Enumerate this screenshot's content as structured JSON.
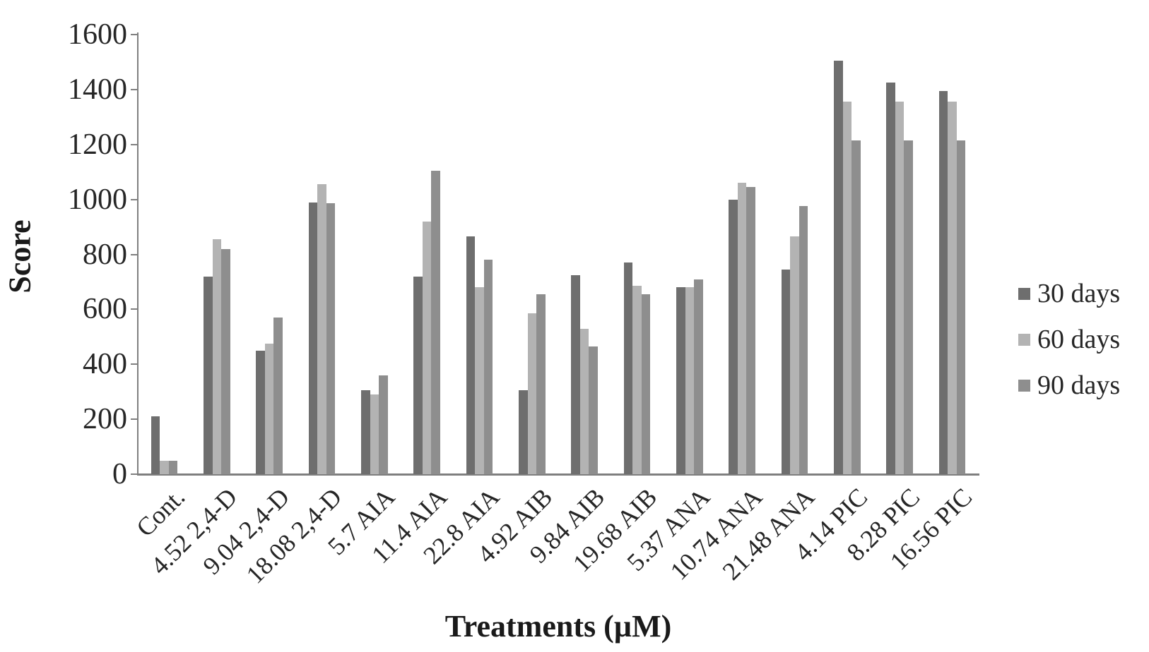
{
  "chart_data": {
    "type": "bar",
    "title": "",
    "xlabel": "Treatments (µM)",
    "ylabel": "Score",
    "ylim": [
      0,
      1600
    ],
    "ytick_step": 200,
    "grid": false,
    "legend_position": "right",
    "categories": [
      "Cont.",
      "4.52 2,4-D",
      "9.04 2,4-D",
      "18.08 2,4-D",
      "5.7 AIA",
      "11.4 AIA",
      "22.8 AIA",
      "4.92 AIB",
      "9.84 AIB",
      "19.68 AIB",
      "5.37 ANA",
      "10.74 ANA",
      "21.48 ANA",
      "4.14 PIC",
      "8.28 PIC",
      "16.56 PIC"
    ],
    "series": [
      {
        "name": "30 days",
        "color": "#6e6e6e",
        "values": [
          210,
          720,
          450,
          990,
          305,
          720,
          865,
          305,
          725,
          770,
          680,
          1000,
          745,
          1505,
          1425,
          1395
        ]
      },
      {
        "name": "60 days",
        "color": "#b3b3b3",
        "values": [
          50,
          855,
          475,
          1055,
          290,
          920,
          680,
          585,
          530,
          685,
          680,
          1060,
          865,
          1355,
          1355,
          1355
        ]
      },
      {
        "name": "90 days",
        "color": "#8e8e8e",
        "values": [
          50,
          820,
          570,
          985,
          360,
          1105,
          780,
          655,
          465,
          655,
          710,
          1045,
          975,
          1215,
          1215,
          1215
        ]
      }
    ]
  }
}
